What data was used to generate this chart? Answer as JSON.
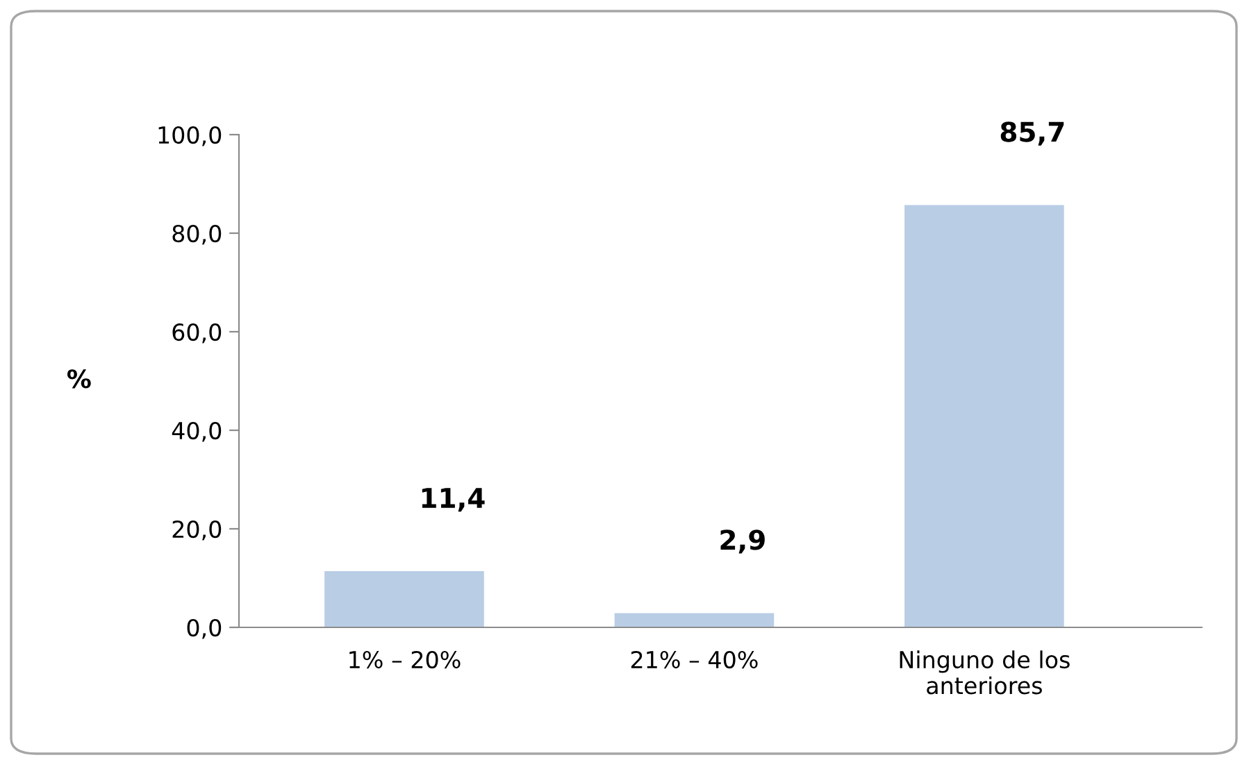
{
  "chart_data": {
    "type": "bar",
    "ylabel": "%",
    "categories": [
      "1% – 20%",
      "21% – 40%",
      "Ninguno de los\nanteriores"
    ],
    "values": [
      11.4,
      2.9,
      85.7
    ],
    "value_labels": [
      "11,4",
      "2,9",
      "85,7"
    ],
    "color": "#b9cde5",
    "ylim": [
      0,
      100
    ],
    "yticks": [
      {
        "value": 0,
        "label": "0,0"
      },
      {
        "value": 20,
        "label": "20,0"
      },
      {
        "value": 40,
        "label": "40,0"
      },
      {
        "value": 60,
        "label": "60,0"
      },
      {
        "value": 80,
        "label": "80,0"
      },
      {
        "value": 100,
        "label": "100,0"
      }
    ],
    "grid": false,
    "legend": false
  }
}
